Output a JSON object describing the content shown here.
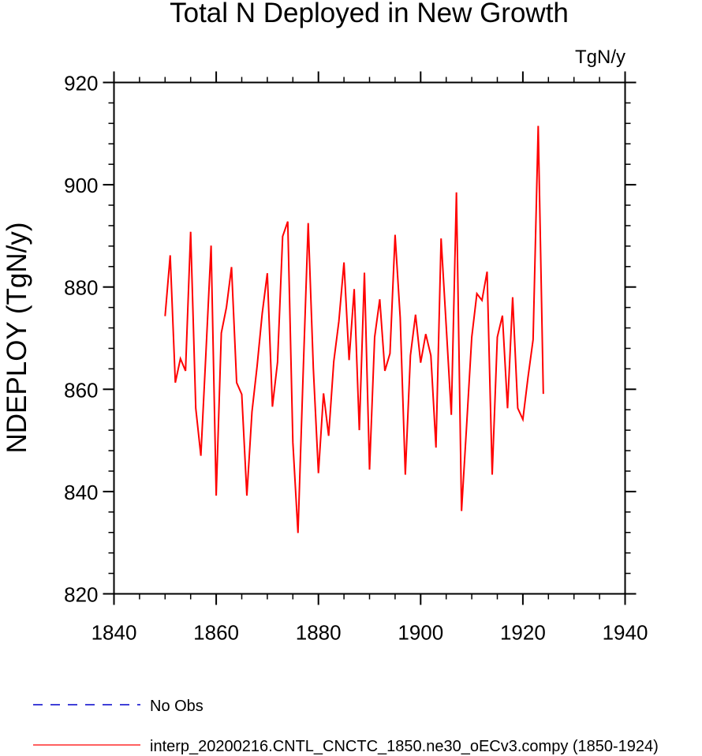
{
  "chart_data": {
    "type": "line",
    "title": "Total N Deployed in New Growth",
    "units_label": "TgN/y",
    "ylabel": "NDEPLOY  (TgN/y)",
    "xlabel": "",
    "xlim": [
      1840,
      1940
    ],
    "ylim": [
      820,
      920
    ],
    "x_ticks": [
      1840,
      1860,
      1880,
      1900,
      1920,
      1940
    ],
    "y_ticks": [
      820,
      840,
      860,
      880,
      900,
      920
    ],
    "legend_position": "bottom",
    "series": [
      {
        "name": "No Obs",
        "color": "#0000cc",
        "dash": "dashed",
        "x": [],
        "y": []
      },
      {
        "name": "interp_20200216.CNTL_CNCTC_1850.ne30_oECv3.compy (1850-1924)",
        "color": "#ff0000",
        "dash": "solid",
        "x": [
          1850,
          1851,
          1852,
          1853,
          1854,
          1855,
          1856,
          1857,
          1858,
          1859,
          1860,
          1861,
          1862,
          1863,
          1864,
          1865,
          1866,
          1867,
          1868,
          1869,
          1870,
          1871,
          1872,
          1873,
          1874,
          1875,
          1876,
          1877,
          1878,
          1879,
          1880,
          1881,
          1882,
          1883,
          1884,
          1885,
          1886,
          1887,
          1888,
          1889,
          1890,
          1891,
          1892,
          1893,
          1894,
          1895,
          1896,
          1897,
          1898,
          1899,
          1900,
          1901,
          1902,
          1903,
          1904,
          1905,
          1906,
          1907,
          1908,
          1909,
          1910,
          1911,
          1912,
          1913,
          1914,
          1915,
          1916,
          1917,
          1918,
          1919,
          1920,
          1921,
          1922,
          1923,
          1924
        ],
        "y": [
          874.3,
          886.2,
          861.3,
          866.0,
          863.6,
          890.8,
          856.3,
          847.0,
          867.3,
          888.1,
          839.2,
          871.0,
          876.0,
          883.9,
          861.3,
          859.0,
          839.2,
          855.6,
          864.5,
          874.8,
          882.7,
          856.6,
          865.3,
          889.9,
          892.8,
          849.6,
          831.9,
          862.8,
          892.5,
          864.2,
          843.6,
          859.2,
          850.9,
          865.4,
          873.3,
          884.8,
          865.7,
          879.6,
          852.0,
          882.8,
          844.3,
          870.2,
          877.6,
          863.6,
          867.0,
          890.2,
          874.0,
          843.3,
          866.6,
          874.6,
          865.2,
          870.8,
          866.6,
          848.6,
          889.5,
          872.4,
          855.0,
          898.5,
          836.2,
          853.0,
          870.2,
          878.7,
          877.4,
          883.0,
          843.3,
          870.2,
          874.4,
          856.3,
          878.0,
          856.3,
          854.1,
          862.3,
          869.7,
          911.5,
          859.1
        ]
      }
    ]
  }
}
